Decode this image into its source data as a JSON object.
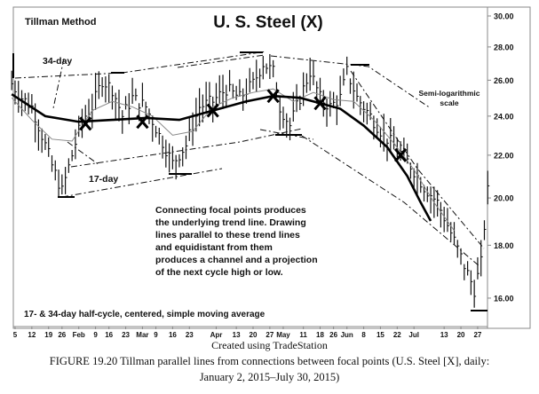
{
  "chart_data": {
    "type": "bar",
    "subtype": "ohlc-daily-price-bars",
    "title": "U. S. Steel (X)",
    "corner_label": "Tillman Method",
    "y_scale": "log",
    "ylim": [
      15.3,
      30.5
    ],
    "y_ticks": [
      "30.00",
      "28.00",
      "26.00",
      "24.00",
      "22.00",
      "20.00",
      "18.00",
      "16.00"
    ],
    "y_tick_values": [
      30,
      28,
      26,
      24,
      22,
      20,
      18,
      16
    ],
    "x_tick_labels": [
      "5",
      "12",
      "19",
      "26",
      "Feb",
      "9",
      "16",
      "23",
      "Mar",
      "9",
      "16",
      "23",
      "Apr",
      "13",
      "20",
      "27",
      "May",
      "11",
      "18",
      "26",
      "Jun",
      "8",
      "15",
      "22",
      "Jul",
      "13",
      "20",
      "27"
    ],
    "x_tick_day_index": [
      1,
      6,
      11,
      15,
      20,
      25,
      29,
      34,
      39,
      43,
      48,
      53,
      61,
      67,
      72,
      77,
      81,
      87,
      92,
      96,
      100,
      105,
      110,
      115,
      120,
      129,
      134,
      139
    ],
    "trading_days": 143,
    "close_keypoints": [
      [
        0,
        25.8
      ],
      [
        3,
        25.0
      ],
      [
        6,
        24.5
      ],
      [
        9,
        23.0
      ],
      [
        12,
        21.5
      ],
      [
        15,
        20.3
      ],
      [
        18,
        22.0
      ],
      [
        21,
        23.8
      ],
      [
        24,
        24.5
      ],
      [
        27,
        26.0
      ],
      [
        30,
        25.5
      ],
      [
        33,
        24.0
      ],
      [
        36,
        25.0
      ],
      [
        40,
        24.5
      ],
      [
        44,
        23.0
      ],
      [
        48,
        21.6
      ],
      [
        52,
        22.5
      ],
      [
        56,
        24.5
      ],
      [
        60,
        24.8
      ],
      [
        64,
        25.5
      ],
      [
        68,
        25.0
      ],
      [
        72,
        25.8
      ],
      [
        75,
        27.0
      ],
      [
        78,
        26.5
      ],
      [
        80,
        24.5
      ],
      [
        83,
        23.5
      ],
      [
        86,
        25.0
      ],
      [
        89,
        26.5
      ],
      [
        92,
        25.0
      ],
      [
        95,
        24.5
      ],
      [
        98,
        25.0
      ],
      [
        100,
        26.5
      ],
      [
        103,
        25.0
      ],
      [
        107,
        24.0
      ],
      [
        111,
        23.0
      ],
      [
        115,
        22.3
      ],
      [
        119,
        21.5
      ],
      [
        123,
        20.5
      ],
      [
        127,
        19.8
      ],
      [
        131,
        18.5
      ],
      [
        135,
        17.2
      ],
      [
        138,
        16.3
      ],
      [
        140,
        17.3
      ],
      [
        142,
        20.3
      ]
    ],
    "ma34": {
      "name": "34-day",
      "values": [
        [
          0,
          25.2
        ],
        [
          10,
          24.0
        ],
        [
          20,
          23.7
        ],
        [
          30,
          23.8
        ],
        [
          40,
          23.9
        ],
        [
          50,
          23.8
        ],
        [
          60,
          24.3
        ],
        [
          70,
          24.8
        ],
        [
          78,
          25.1
        ],
        [
          86,
          25.0
        ],
        [
          92,
          24.7
        ],
        [
          98,
          24.4
        ],
        [
          105,
          23.5
        ],
        [
          112,
          22.4
        ],
        [
          118,
          21.0
        ],
        [
          122,
          19.8
        ],
        [
          125,
          19.0
        ]
      ]
    },
    "ma17": {
      "name": "17-day",
      "values": [
        [
          0,
          25.0
        ],
        [
          6,
          23.8
        ],
        [
          12,
          22.8
        ],
        [
          18,
          22.7
        ],
        [
          24,
          24.3
        ],
        [
          30,
          24.8
        ],
        [
          36,
          24.5
        ],
        [
          42,
          24.0
        ],
        [
          48,
          23.0
        ],
        [
          54,
          23.2
        ],
        [
          60,
          24.5
        ],
        [
          66,
          25.0
        ],
        [
          72,
          25.3
        ],
        [
          78,
          25.5
        ],
        [
          84,
          24.8
        ],
        [
          90,
          25.3
        ],
        [
          96,
          24.9
        ],
        [
          102,
          24.8
        ],
        [
          108,
          23.8
        ],
        [
          114,
          22.6
        ],
        [
          120,
          21.3
        ],
        [
          126,
          19.8
        ],
        [
          132,
          18.6
        ]
      ]
    },
    "focal_points": [
      [
        22,
        23.6
      ],
      [
        39,
        23.7
      ],
      [
        60,
        24.3
      ],
      [
        78,
        25.1
      ],
      [
        92,
        24.7
      ],
      [
        116,
        22.0
      ]
    ],
    "annotations": {
      "ma34_label": "34-day",
      "ma17_label": "17-day",
      "scale_note_1": "Semi-logarithmic",
      "scale_note_2": "scale",
      "paragraph": [
        "Connecting focal points produces",
        "the underlying trend line.  Drawing",
        "lines parallel to these trend lines",
        "and equidistant from them",
        "produces a channel and a projection",
        "of the next cycle high or low."
      ],
      "footnote": "17- & 34-day half-cycle, centered, simple moving average"
    }
  },
  "caption": {
    "source": "Created using TradeStation",
    "figure": "FIGURE 19.20 Tillman parallel lines from connections between focal points (U.S. Steel [X], daily:",
    "dates": "January 2, 2015–July 30, 2015)"
  }
}
